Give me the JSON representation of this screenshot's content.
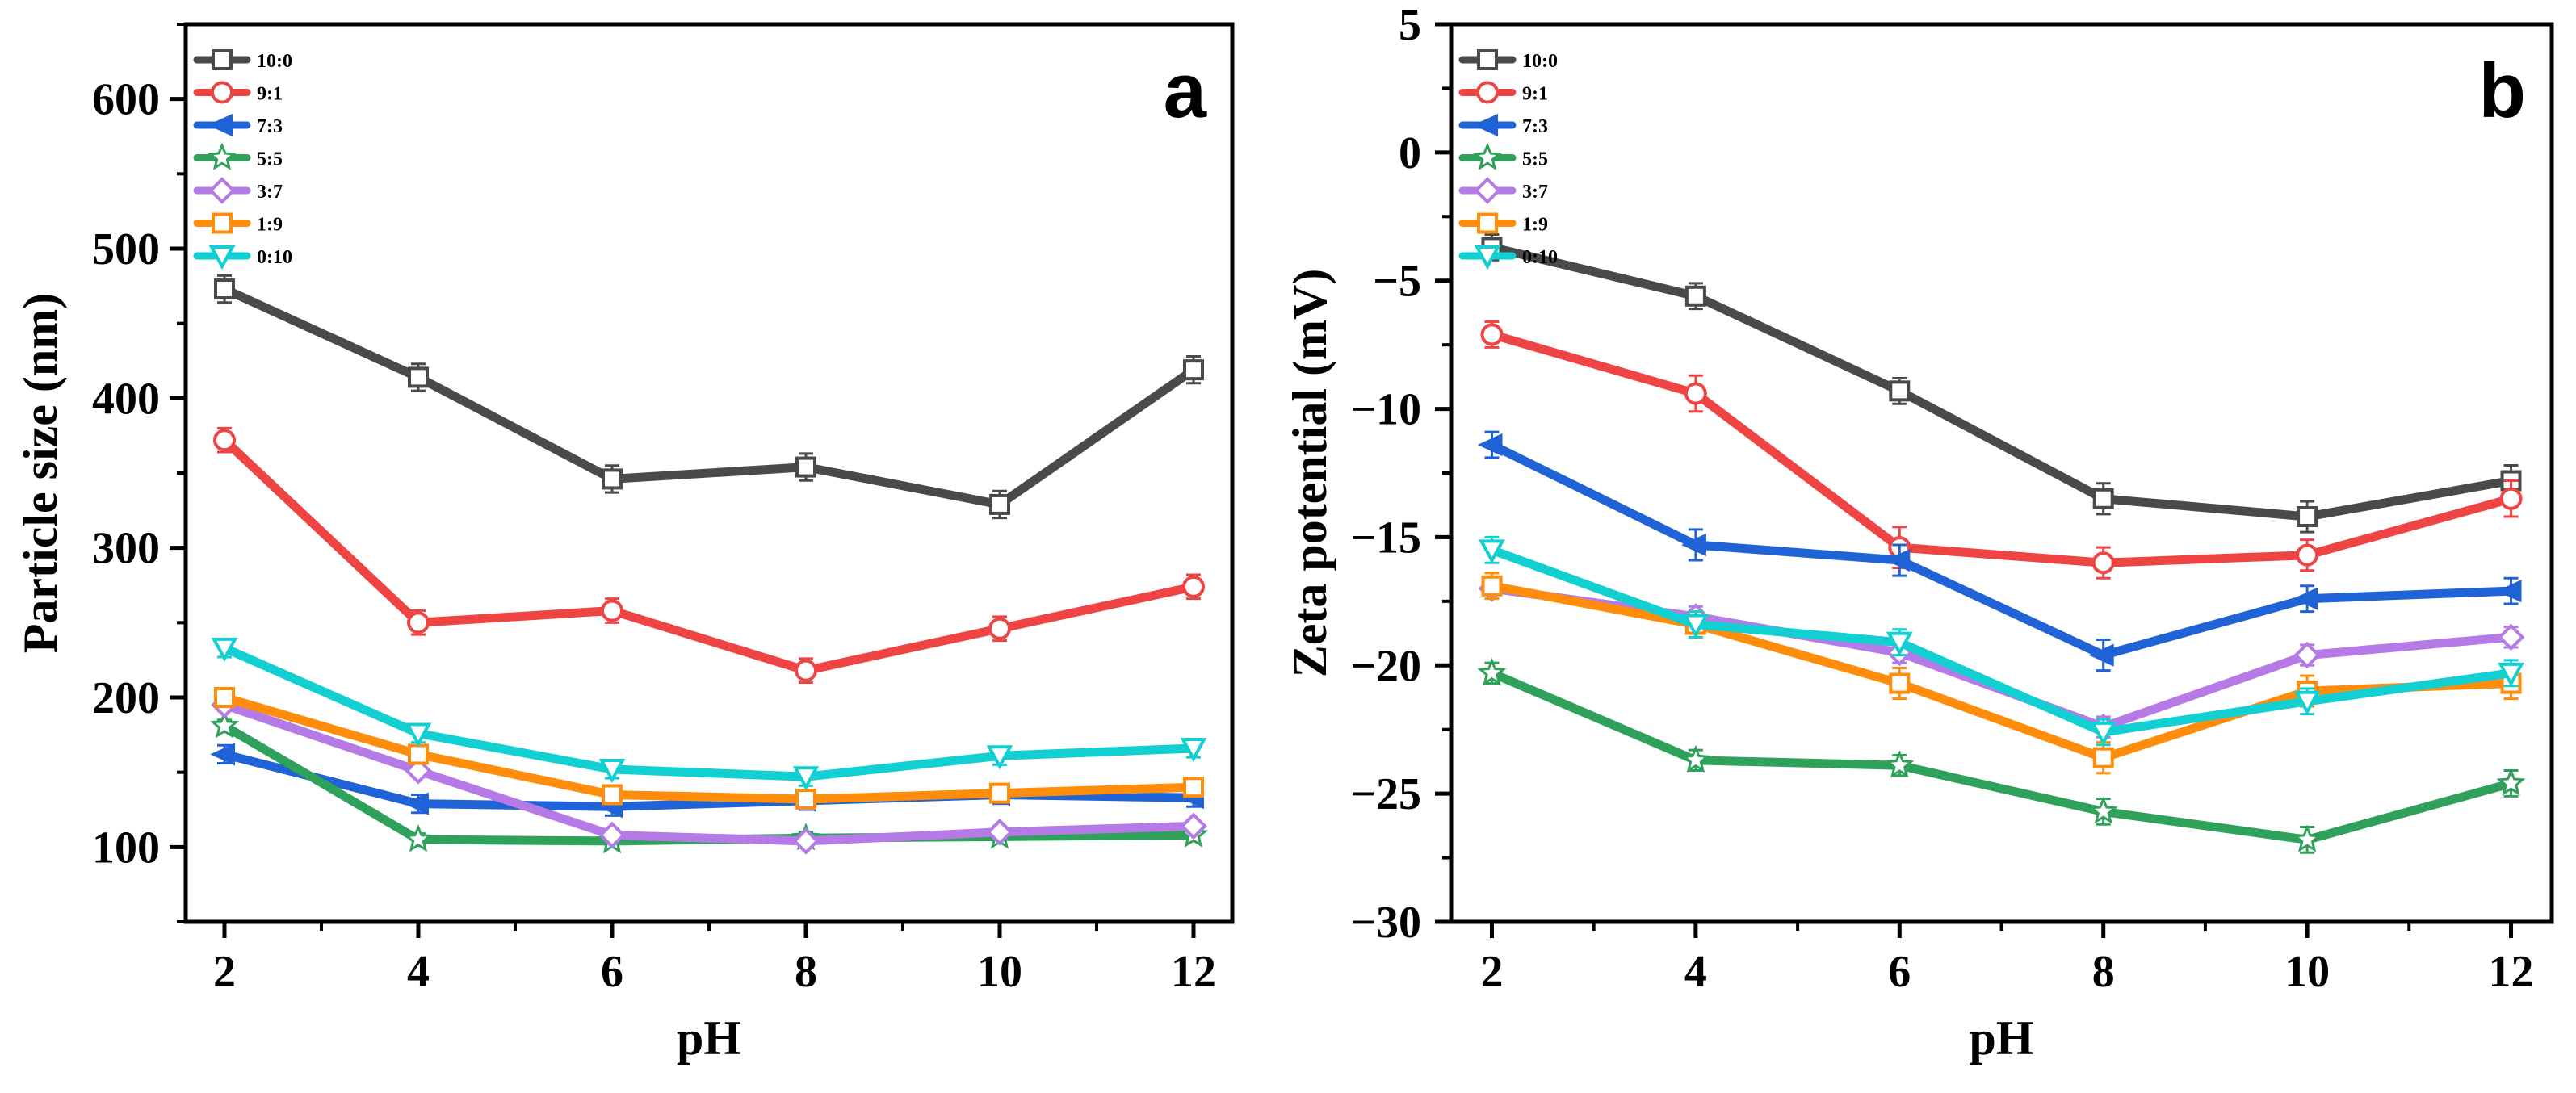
{
  "figure": {
    "legend_entries": [
      "10:0",
      "9:1",
      "7:3",
      "5:5",
      "3:7",
      "1:9",
      "0:10"
    ],
    "colors": {
      "10:0": "#4a4a4a",
      "9:1": "#ef4444",
      "7:3": "#1f63d6",
      "5:5": "#2fa15b",
      "3:7": "#b57ae6",
      "1:9": "#ff8c0a",
      "0:10": "#12cfd2"
    },
    "markers": {
      "10:0": "square",
      "9:1": "circle",
      "7:3": "triangle-left",
      "5:5": "star",
      "3:7": "diamond",
      "1:9": "square",
      "0:10": "triangle-down"
    }
  },
  "chart_data": [
    {
      "type": "line",
      "panel_label": "a",
      "title": "",
      "xlabel": "pH",
      "ylabel": "Particle size (nm)",
      "x": [
        2,
        4,
        6,
        8,
        10,
        12
      ],
      "xlim": [
        1.6,
        12.4
      ],
      "ylim": [
        50,
        650
      ],
      "x_ticks": [
        2,
        4,
        6,
        8,
        10,
        12
      ],
      "y_ticks": [
        100,
        200,
        300,
        400,
        500,
        600
      ],
      "legend_position": "top-left",
      "series": [
        {
          "name": "10:0",
          "values": [
            473,
            414,
            346,
            354,
            329,
            419
          ],
          "errors": [
            9,
            9,
            9,
            9,
            9,
            9
          ]
        },
        {
          "name": "9:1",
          "values": [
            372,
            250,
            258,
            218,
            246,
            274
          ],
          "errors": [
            8,
            8,
            8,
            8,
            8,
            8
          ]
        },
        {
          "name": "7:3",
          "values": [
            162,
            129,
            127,
            131,
            135,
            133
          ],
          "errors": [
            6,
            6,
            6,
            6,
            6,
            6
          ]
        },
        {
          "name": "5:5",
          "values": [
            181,
            105,
            104,
            106,
            107,
            108
          ],
          "errors": [
            4,
            4,
            4,
            4,
            4,
            4
          ]
        },
        {
          "name": "3:7",
          "values": [
            195,
            151,
            108,
            104,
            110,
            114
          ],
          "errors": [
            4,
            4,
            4,
            4,
            4,
            4
          ]
        },
        {
          "name": "1:9",
          "values": [
            200,
            162,
            135,
            132,
            136,
            140
          ],
          "errors": [
            6,
            6,
            6,
            6,
            6,
            6
          ]
        },
        {
          "name": "0:10",
          "values": [
            233,
            176,
            152,
            147,
            161,
            166
          ],
          "errors": [
            6,
            6,
            6,
            6,
            6,
            6
          ]
        }
      ]
    },
    {
      "type": "line",
      "panel_label": "b",
      "title": "",
      "xlabel": "pH",
      "ylabel": "Zeta potential (mV)",
      "x": [
        2,
        4,
        6,
        8,
        10,
        12
      ],
      "xlim": [
        1.6,
        12.4
      ],
      "ylim": [
        -30,
        5
      ],
      "x_ticks": [
        2,
        4,
        6,
        8,
        10,
        12
      ],
      "y_ticks": [
        5,
        0,
        -5,
        -10,
        -15,
        -20,
        -25,
        -30
      ],
      "legend_position": "top-left",
      "series": [
        {
          "name": "10:0",
          "values": [
            -3.7,
            -5.6,
            -9.3,
            -13.5,
            -14.2,
            -12.8
          ],
          "errors": [
            0.5,
            0.5,
            0.5,
            0.6,
            0.6,
            0.6
          ]
        },
        {
          "name": "9:1",
          "values": [
            -7.1,
            -9.4,
            -15.4,
            -16.0,
            -15.7,
            -13.5
          ],
          "errors": [
            0.5,
            0.7,
            0.8,
            0.6,
            0.6,
            0.7
          ]
        },
        {
          "name": "7:3",
          "values": [
            -11.4,
            -15.3,
            -15.9,
            -19.6,
            -17.4,
            -17.1
          ],
          "errors": [
            0.5,
            0.6,
            0.6,
            0.6,
            0.5,
            0.5
          ]
        },
        {
          "name": "5:5",
          "values": [
            -20.3,
            -23.7,
            -23.9,
            -25.7,
            -26.8,
            -24.6
          ],
          "errors": [
            0.4,
            0.4,
            0.4,
            0.5,
            0.5,
            0.5
          ]
        },
        {
          "name": "3:7",
          "values": [
            -17.0,
            -18.1,
            -19.5,
            -22.4,
            -19.6,
            -18.9
          ],
          "errors": [
            0.4,
            0.4,
            0.4,
            0.4,
            0.4,
            0.4
          ]
        },
        {
          "name": "1:9",
          "values": [
            -16.9,
            -18.4,
            -20.7,
            -23.6,
            -21.0,
            -20.7
          ],
          "errors": [
            0.5,
            0.5,
            0.6,
            0.6,
            0.6,
            0.6
          ]
        },
        {
          "name": "0:10",
          "values": [
            -15.5,
            -18.4,
            -19.1,
            -22.6,
            -21.4,
            -20.3
          ],
          "errors": [
            0.5,
            0.5,
            0.5,
            0.5,
            0.5,
            0.5
          ]
        }
      ]
    }
  ]
}
